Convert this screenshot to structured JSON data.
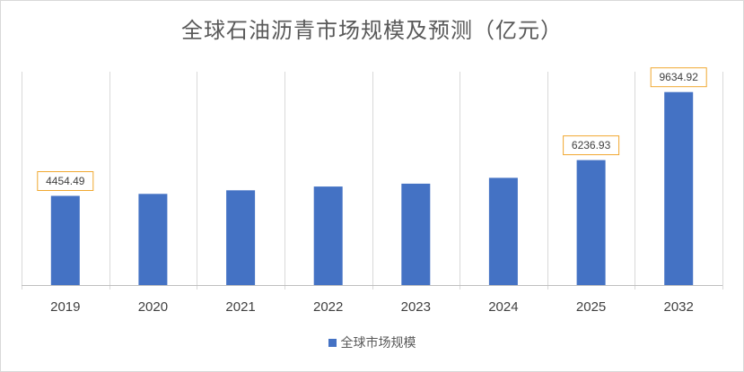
{
  "chart_data": {
    "type": "bar",
    "title": "全球石油沥青市场规模及预测（亿元）",
    "categories": [
      "2019",
      "2020",
      "2021",
      "2022",
      "2023",
      "2024",
      "2025",
      "2032"
    ],
    "series": [
      {
        "name": "全球市场规模",
        "color": "#4472c4",
        "values": [
          4454.49,
          4550,
          4730,
          4920,
          5060,
          5350,
          6236.93,
          9634.92
        ]
      }
    ],
    "data_labels": [
      {
        "category": "2019",
        "text": "4454.49"
      },
      {
        "category": "2025",
        "text": "6236.93"
      },
      {
        "category": "2032",
        "text": "9634.92"
      }
    ],
    "ylim": [
      0,
      10650
    ],
    "grid": "vertical",
    "legend_position": "bottom",
    "label_border_color": "#f0a830"
  }
}
